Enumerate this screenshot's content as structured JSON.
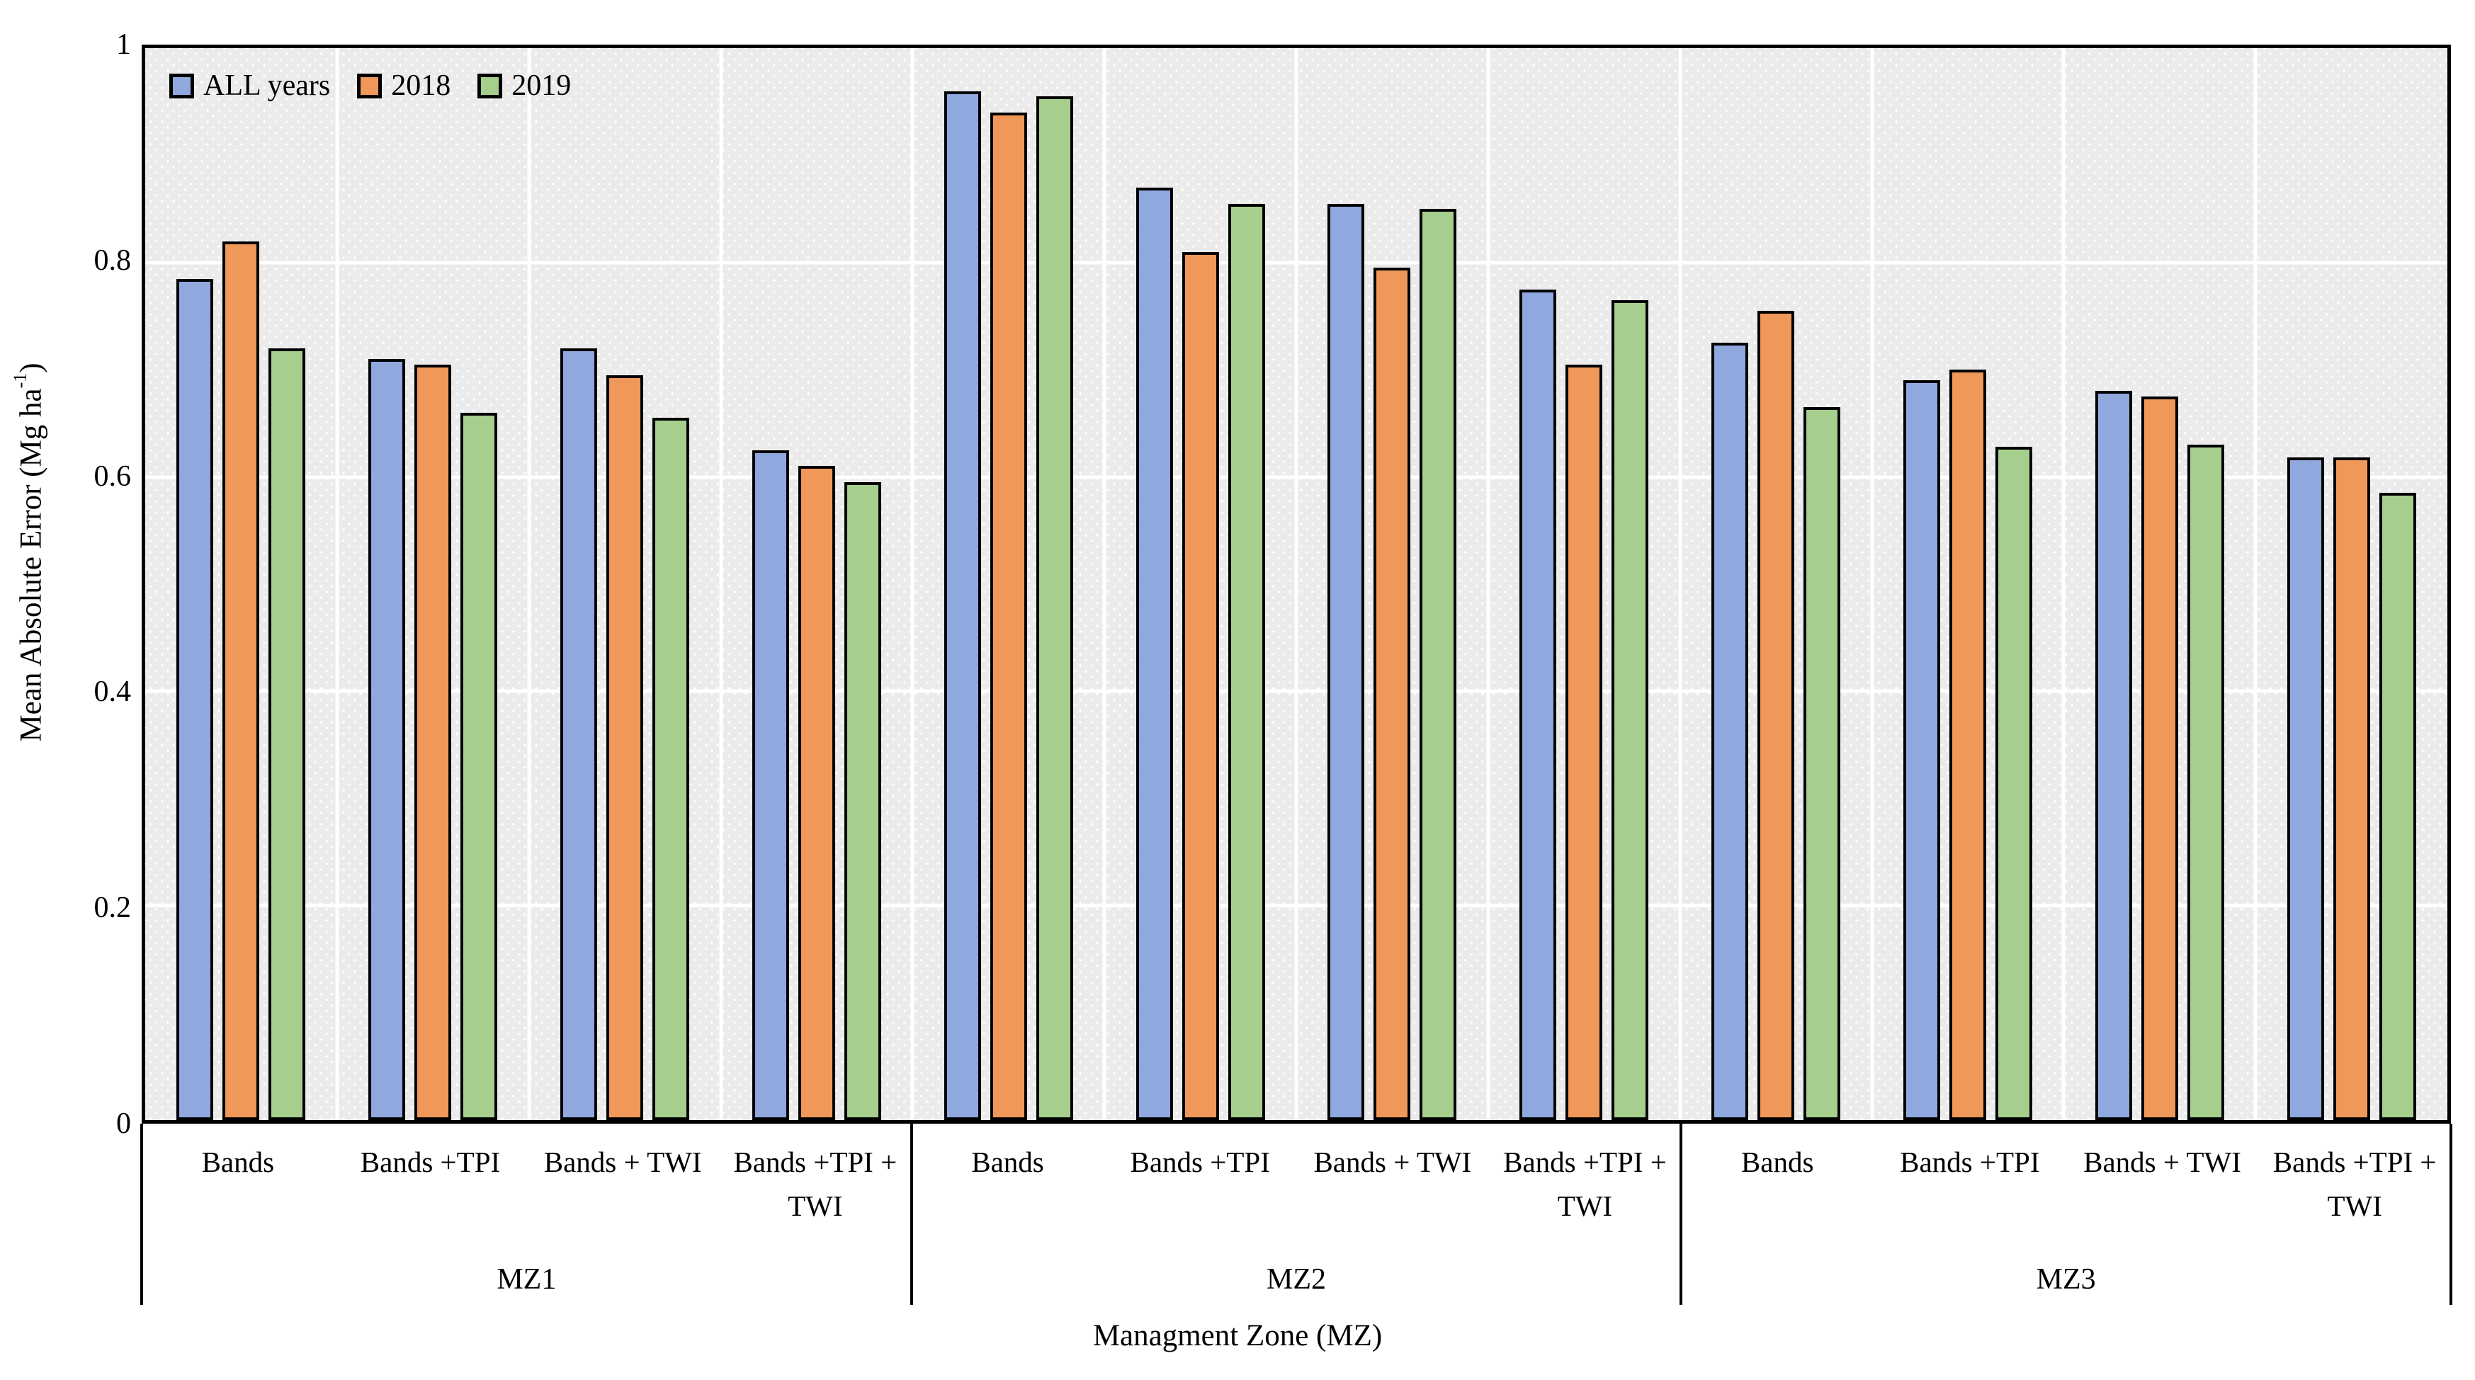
{
  "chart_data": {
    "type": "bar",
    "title": "",
    "xlabel": "Managment Zone (MZ)",
    "ylabel": "Mean Absolute Error (Mg ha⁻¹)",
    "ylabel_parts": {
      "prefix": "Mean Absolute Error (Mg ha",
      "superscript": "-1",
      "suffix": ")"
    },
    "ylim": [
      0,
      1
    ],
    "y_ticks": [
      {
        "label": "1",
        "value": 1.0
      },
      {
        "label": "0.8",
        "value": 0.8
      },
      {
        "label": "0.6",
        "value": 0.6
      },
      {
        "label": "0.4",
        "value": 0.4
      },
      {
        "label": "0.2",
        "value": 0.2
      },
      {
        "label": "0",
        "value": 0.0
      }
    ],
    "gridlines": {
      "horizontal_at": [
        0.2,
        0.4,
        0.6,
        0.8
      ],
      "color": "#ffffff",
      "background": "dotted light gray"
    },
    "legend": {
      "position": "top-left-inside",
      "entries": [
        {
          "label": "ALL years",
          "color": "#8FA8DE"
        },
        {
          "label": "2018",
          "color": "#F0985A"
        },
        {
          "label": "2019",
          "color": "#A6CF8D"
        }
      ]
    },
    "series": [
      "ALL years",
      "2018",
      "2019"
    ],
    "bar_border_color": "#000000",
    "zones": [
      {
        "label": "MZ1",
        "groups": [
          {
            "category": "Bands",
            "values": [
              0.785,
              0.82,
              0.72
            ]
          },
          {
            "category": "Bands +TPI",
            "values": [
              0.71,
              0.705,
              0.66
            ]
          },
          {
            "category": "Bands + TWI",
            "values": [
              0.72,
              0.695,
              0.655
            ]
          },
          {
            "category": "Bands +TPI + TWI",
            "values": [
              0.625,
              0.61,
              0.595
            ]
          }
        ]
      },
      {
        "label": "MZ2",
        "groups": [
          {
            "category": "Bands",
            "values": [
              0.96,
              0.94,
              0.955
            ]
          },
          {
            "category": "Bands +TPI",
            "values": [
              0.87,
              0.81,
              0.855
            ]
          },
          {
            "category": "Bands + TWI",
            "values": [
              0.855,
              0.795,
              0.85
            ]
          },
          {
            "category": "Bands +TPI + TWI",
            "values": [
              0.775,
              0.705,
              0.765
            ]
          }
        ]
      },
      {
        "label": "MZ3",
        "groups": [
          {
            "category": "Bands",
            "values": [
              0.725,
              0.755,
              0.665
            ]
          },
          {
            "category": "Bands +TPI",
            "values": [
              0.69,
              0.7,
              0.628
            ]
          },
          {
            "category": "Bands + TWI",
            "values": [
              0.68,
              0.675,
              0.63
            ]
          },
          {
            "category": "Bands +TPI + TWI",
            "values": [
              0.618,
              0.618,
              0.585
            ]
          }
        ]
      }
    ]
  }
}
